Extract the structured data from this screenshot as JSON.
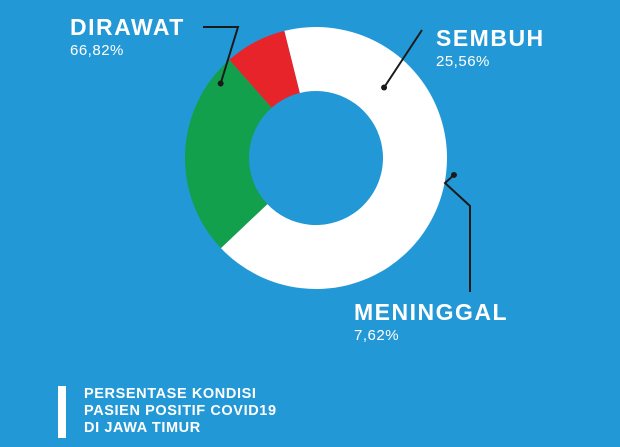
{
  "chart_data": {
    "type": "pie",
    "style": "donut",
    "series": [
      {
        "name": "DIRAWAT",
        "value": 66.82,
        "label": "66,82%",
        "color": "#ffffff"
      },
      {
        "name": "SEMBUH",
        "value": 25.56,
        "label": "25,56%",
        "color": "#12a04c"
      },
      {
        "name": "MENINGGAL",
        "value": 7.62,
        "label": "7,62%",
        "color": "#e8242b"
      }
    ],
    "title_lines": [
      "PERSENTASE KONDISI",
      "PASIEN POSITIF COVID19",
      "DI JAWA TIMUR"
    ],
    "leader_color": "#1a1a1a",
    "legend": "none"
  },
  "colors": {
    "background": "#2398d6",
    "text": "#ffffff"
  }
}
